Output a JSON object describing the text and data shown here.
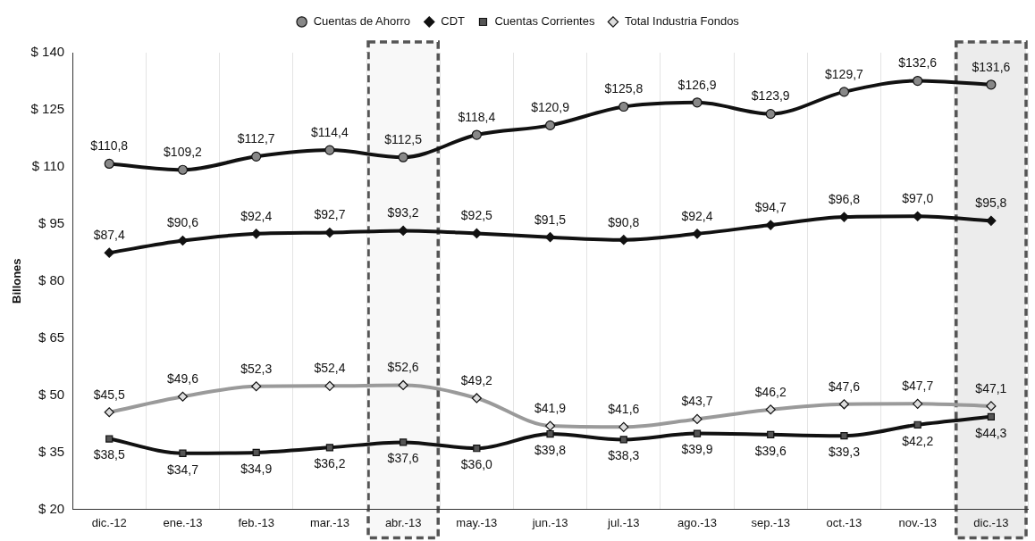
{
  "chart_data": {
    "type": "line",
    "ylabel": "Billones",
    "categories": [
      "dic.-12",
      "ene.-13",
      "feb.-13",
      "mar.-13",
      "abr.-13",
      "may.-13",
      "jun.-13",
      "jul.-13",
      "ago.-13",
      "sep.-13",
      "oct.-13",
      "nov.-13",
      "dic.-13"
    ],
    "series": [
      {
        "name": "Cuentas de Ahorro",
        "color": "#111111",
        "marker": "circle",
        "values": [
          110.8,
          109.2,
          112.7,
          114.4,
          112.5,
          118.4,
          120.9,
          125.8,
          126.9,
          123.9,
          129.7,
          132.6,
          131.6
        ],
        "value_labels": [
          "$110,8",
          "$109,2",
          "$112,7",
          "$114,4",
          "$112,5",
          "$118,4",
          "$120,9",
          "$125,8",
          "$126,9",
          "$123,9",
          "$129,7",
          "$132,6",
          "$131,6"
        ]
      },
      {
        "name": "CDT",
        "color": "#111111",
        "marker": "diamond",
        "values": [
          87.4,
          90.6,
          92.4,
          92.7,
          93.2,
          92.5,
          91.5,
          90.8,
          92.4,
          94.7,
          96.8,
          97.0,
          95.8
        ],
        "value_labels": [
          "$87,4",
          "$90,6",
          "$92,4",
          "$92,7",
          "$93,2",
          "$92,5",
          "$91,5",
          "$90,8",
          "$92,4",
          "$94,7",
          "$96,8",
          "$97,0",
          "$95,8"
        ]
      },
      {
        "name": "Cuentas Corrientes",
        "color": "#111111",
        "marker": "square",
        "values": [
          38.5,
          34.7,
          34.9,
          36.2,
          37.6,
          36.0,
          39.8,
          38.3,
          39.9,
          39.6,
          39.3,
          42.2,
          44.3
        ],
        "value_labels": [
          "$38,5",
          "$34,7",
          "$34,9",
          "$36,2",
          "$37,6",
          "$36,0",
          "$39,8",
          "$38,3",
          "$39,9",
          "$39,6",
          "$39,3",
          "$42,2",
          "$44,3"
        ]
      },
      {
        "name": "Total Industria Fondos",
        "color": "#9a9a9a",
        "marker": "diamond",
        "values": [
          45.5,
          49.6,
          52.3,
          52.4,
          52.6,
          49.2,
          41.9,
          41.6,
          43.7,
          46.2,
          47.6,
          47.7,
          47.1
        ],
        "value_labels": [
          "$45,5",
          "$49,6",
          "$52,3",
          "$52,4",
          "$52,6",
          "$49,2",
          "$41,9",
          "$41,6",
          "$43,7",
          "$46,2",
          "$47,6",
          "$47,7",
          "$47,1"
        ]
      }
    ],
    "ylim": [
      20,
      140
    ],
    "yticks": [
      {
        "value": 20,
        "label": "$ 20"
      },
      {
        "value": 35,
        "label": "$ 35"
      },
      {
        "value": 50,
        "label": "$ 50"
      },
      {
        "value": 65,
        "label": "$ 65"
      },
      {
        "value": 80,
        "label": "$ 80"
      },
      {
        "value": 95,
        "label": "$ 95"
      },
      {
        "value": 110,
        "label": "$ 110"
      },
      {
        "value": 125,
        "label": "$ 125"
      },
      {
        "value": 140,
        "label": "$ 140"
      }
    ],
    "bands": [
      {
        "axis": "x",
        "from": "abr.-13",
        "to": "abr.-13",
        "color": "#f8f8f8"
      },
      {
        "axis": "x",
        "from": "dic.-13",
        "to": "dic.-13",
        "color": "#ececec"
      }
    ],
    "grid": "x",
    "legend": "top"
  }
}
